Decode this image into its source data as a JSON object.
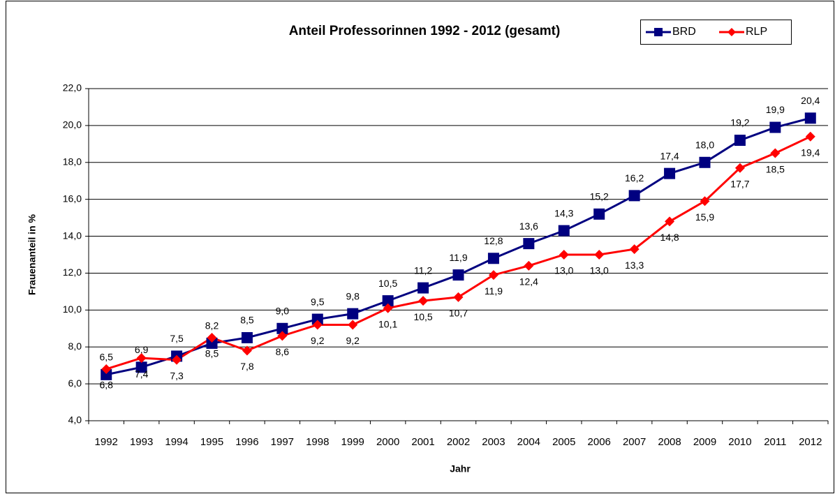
{
  "chart_data": {
    "type": "line",
    "title": "Anteil Professorinnen 1992 - 2012 (gesamt)",
    "x_label": "Jahr",
    "y_label": "Frauenanteil in %",
    "categories": [
      "1992",
      "1993",
      "1994",
      "1995",
      "1996",
      "1997",
      "1998",
      "1999",
      "2000",
      "2001",
      "2002",
      "2003",
      "2004",
      "2005",
      "2006",
      "2007",
      "2008",
      "2009",
      "2010",
      "2011",
      "2012"
    ],
    "series": [
      {
        "name": "BRD",
        "color": "#000080",
        "marker": "square",
        "label_side": "above",
        "values": [
          6.5,
          6.9,
          7.5,
          8.2,
          8.5,
          9.0,
          9.5,
          9.8,
          10.5,
          11.2,
          11.9,
          12.8,
          13.6,
          14.3,
          15.2,
          16.2,
          17.4,
          18.0,
          19.2,
          19.9,
          20.4
        ],
        "value_labels": [
          "6,5",
          "6,9",
          "7,5",
          "8,2",
          "8,5",
          "9,0",
          "9,5",
          "9,8",
          "10,5",
          "11,2",
          "11,9",
          "12,8",
          "13,6",
          "14,3",
          "15,2",
          "16,2",
          "17,4",
          "18,0",
          "19,2",
          "19,9",
          "20,4"
        ]
      },
      {
        "name": "RLP",
        "color": "#ff0000",
        "marker": "diamond",
        "label_side": "below",
        "values": [
          6.8,
          7.4,
          7.3,
          8.5,
          7.8,
          8.6,
          9.2,
          9.2,
          10.1,
          10.5,
          10.7,
          11.9,
          12.4,
          13.0,
          13.0,
          13.3,
          14.8,
          15.9,
          17.7,
          18.5,
          19.4
        ],
        "value_labels": [
          "6,8",
          "7,4",
          "7,3",
          "8,5",
          "7,8",
          "8,6",
          "9,2",
          "9,2",
          "10,1",
          "10,5",
          "10,7",
          "11,9",
          "12,4",
          "13,0",
          "13,0",
          "13,3",
          "14,8",
          "15,9",
          "17,7",
          "18,5",
          "19,4"
        ]
      }
    ],
    "ylim": [
      4,
      22
    ],
    "yticks": [
      {
        "value": 4,
        "label": "4,0"
      },
      {
        "value": 6,
        "label": "6,0"
      },
      {
        "value": 8,
        "label": "8,0"
      },
      {
        "value": 10,
        "label": "10,0"
      },
      {
        "value": 12,
        "label": "12,0"
      },
      {
        "value": 14,
        "label": "14,0"
      },
      {
        "value": 16,
        "label": "16,0"
      },
      {
        "value": 18,
        "label": "18,0"
      },
      {
        "value": 20,
        "label": "20,0"
      },
      {
        "value": 22,
        "label": "22,0"
      }
    ],
    "grid": true,
    "legend": "top-right"
  }
}
